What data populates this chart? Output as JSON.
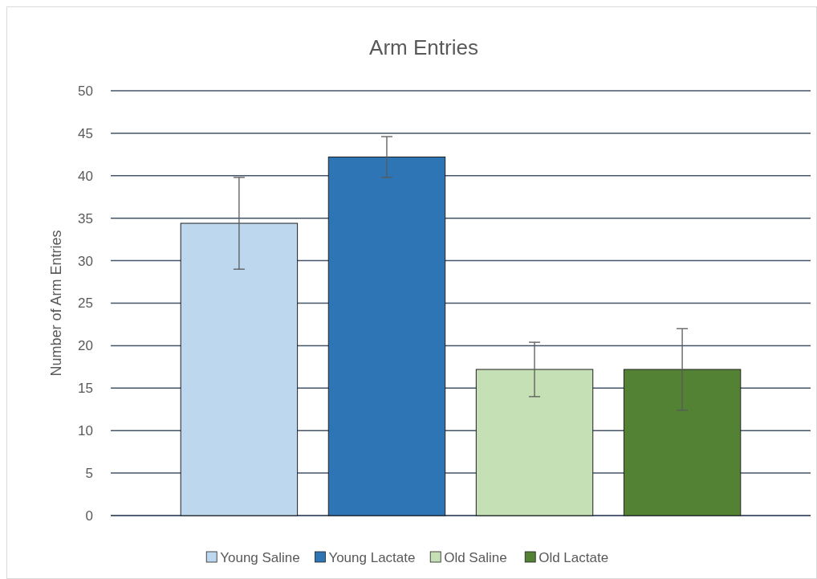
{
  "chart_data": {
    "type": "bar",
    "title": "Arm Entries",
    "ylabel": "Number  of Arm Entries",
    "categories": [
      null
    ],
    "series": [
      {
        "name": "Young Saline",
        "color": "#bdd7ee",
        "values": [
          34.4
        ],
        "errors": [
          5.4
        ]
      },
      {
        "name": "Young Lactate",
        "color": "#2e75b6",
        "values": [
          42.2
        ],
        "errors": [
          2.4
        ]
      },
      {
        "name": "Old Saline",
        "color": "#c5e0b4",
        "values": [
          17.2
        ],
        "errors": [
          3.2
        ]
      },
      {
        "name": "Old Lactate",
        "color": "#548235",
        "values": [
          17.2
        ],
        "errors": [
          4.8
        ]
      }
    ],
    "ylim": [
      0,
      50
    ],
    "yticks": [
      0,
      5,
      10,
      15,
      20,
      25,
      30,
      35,
      40,
      45,
      50
    ],
    "grid": "y",
    "legend": "bottom"
  }
}
